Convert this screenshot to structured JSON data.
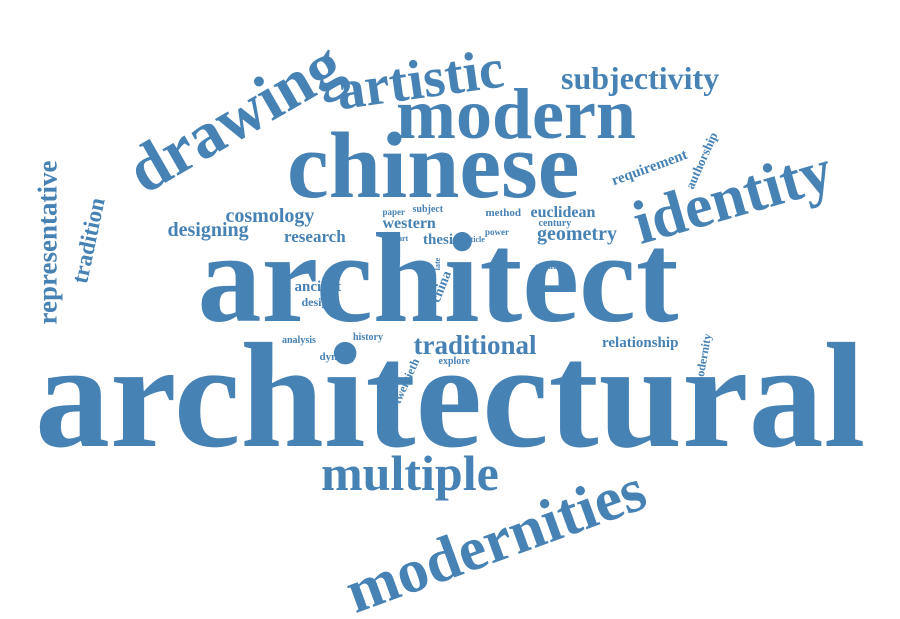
{
  "cloud": {
    "color": "#4682b4",
    "words": [
      {
        "id": "architectural",
        "text": "architectural"
      },
      {
        "id": "architect",
        "text": "architect"
      },
      {
        "id": "chinese",
        "text": "chinese"
      },
      {
        "id": "modern",
        "text": "modern"
      },
      {
        "id": "drawing",
        "text": "drawing"
      },
      {
        "id": "artistic",
        "text": "artistic"
      },
      {
        "id": "subjectivity",
        "text": "subjectivity"
      },
      {
        "id": "identity",
        "text": "identity"
      },
      {
        "id": "modernities",
        "text": "modernities"
      },
      {
        "id": "multiple",
        "text": "multiple"
      },
      {
        "id": "representative",
        "text": "representative"
      },
      {
        "id": "tradition",
        "text": "tradition"
      },
      {
        "id": "cosmology",
        "text": "cosmology"
      },
      {
        "id": "designing",
        "text": "designing"
      },
      {
        "id": "research",
        "text": "research"
      },
      {
        "id": "western",
        "text": "western"
      },
      {
        "id": "thesis",
        "text": "thesis"
      },
      {
        "id": "geometry",
        "text": "geometry"
      },
      {
        "id": "euclidean",
        "text": "euclidean"
      },
      {
        "id": "century",
        "text": "century"
      },
      {
        "id": "method",
        "text": "method"
      },
      {
        "id": "power",
        "text": "power"
      },
      {
        "id": "article",
        "text": "article"
      },
      {
        "id": "paper",
        "text": "paper"
      },
      {
        "id": "subject",
        "text": "subject"
      },
      {
        "id": "part",
        "text": "part"
      },
      {
        "id": "requirement",
        "text": "requirement"
      },
      {
        "id": "authorship",
        "text": "authorship"
      },
      {
        "id": "traditional",
        "text": "traditional"
      },
      {
        "id": "relationship",
        "text": "relationship"
      },
      {
        "id": "modernity",
        "text": "modernity"
      },
      {
        "id": "ancient",
        "text": "ancient"
      },
      {
        "id": "design",
        "text": "design"
      },
      {
        "id": "analysis",
        "text": "analysis"
      },
      {
        "id": "history",
        "text": "history"
      },
      {
        "id": "dynasty",
        "text": "dynasty"
      },
      {
        "id": "explore",
        "text": "explore"
      },
      {
        "id": "twentieth",
        "text": "twentieth"
      },
      {
        "id": "study",
        "text": "study"
      },
      {
        "id": "form",
        "text": "form"
      },
      {
        "id": "late",
        "text": "late"
      },
      {
        "id": "china",
        "text": "china"
      },
      {
        "id": "argue",
        "text": "argue"
      }
    ]
  }
}
